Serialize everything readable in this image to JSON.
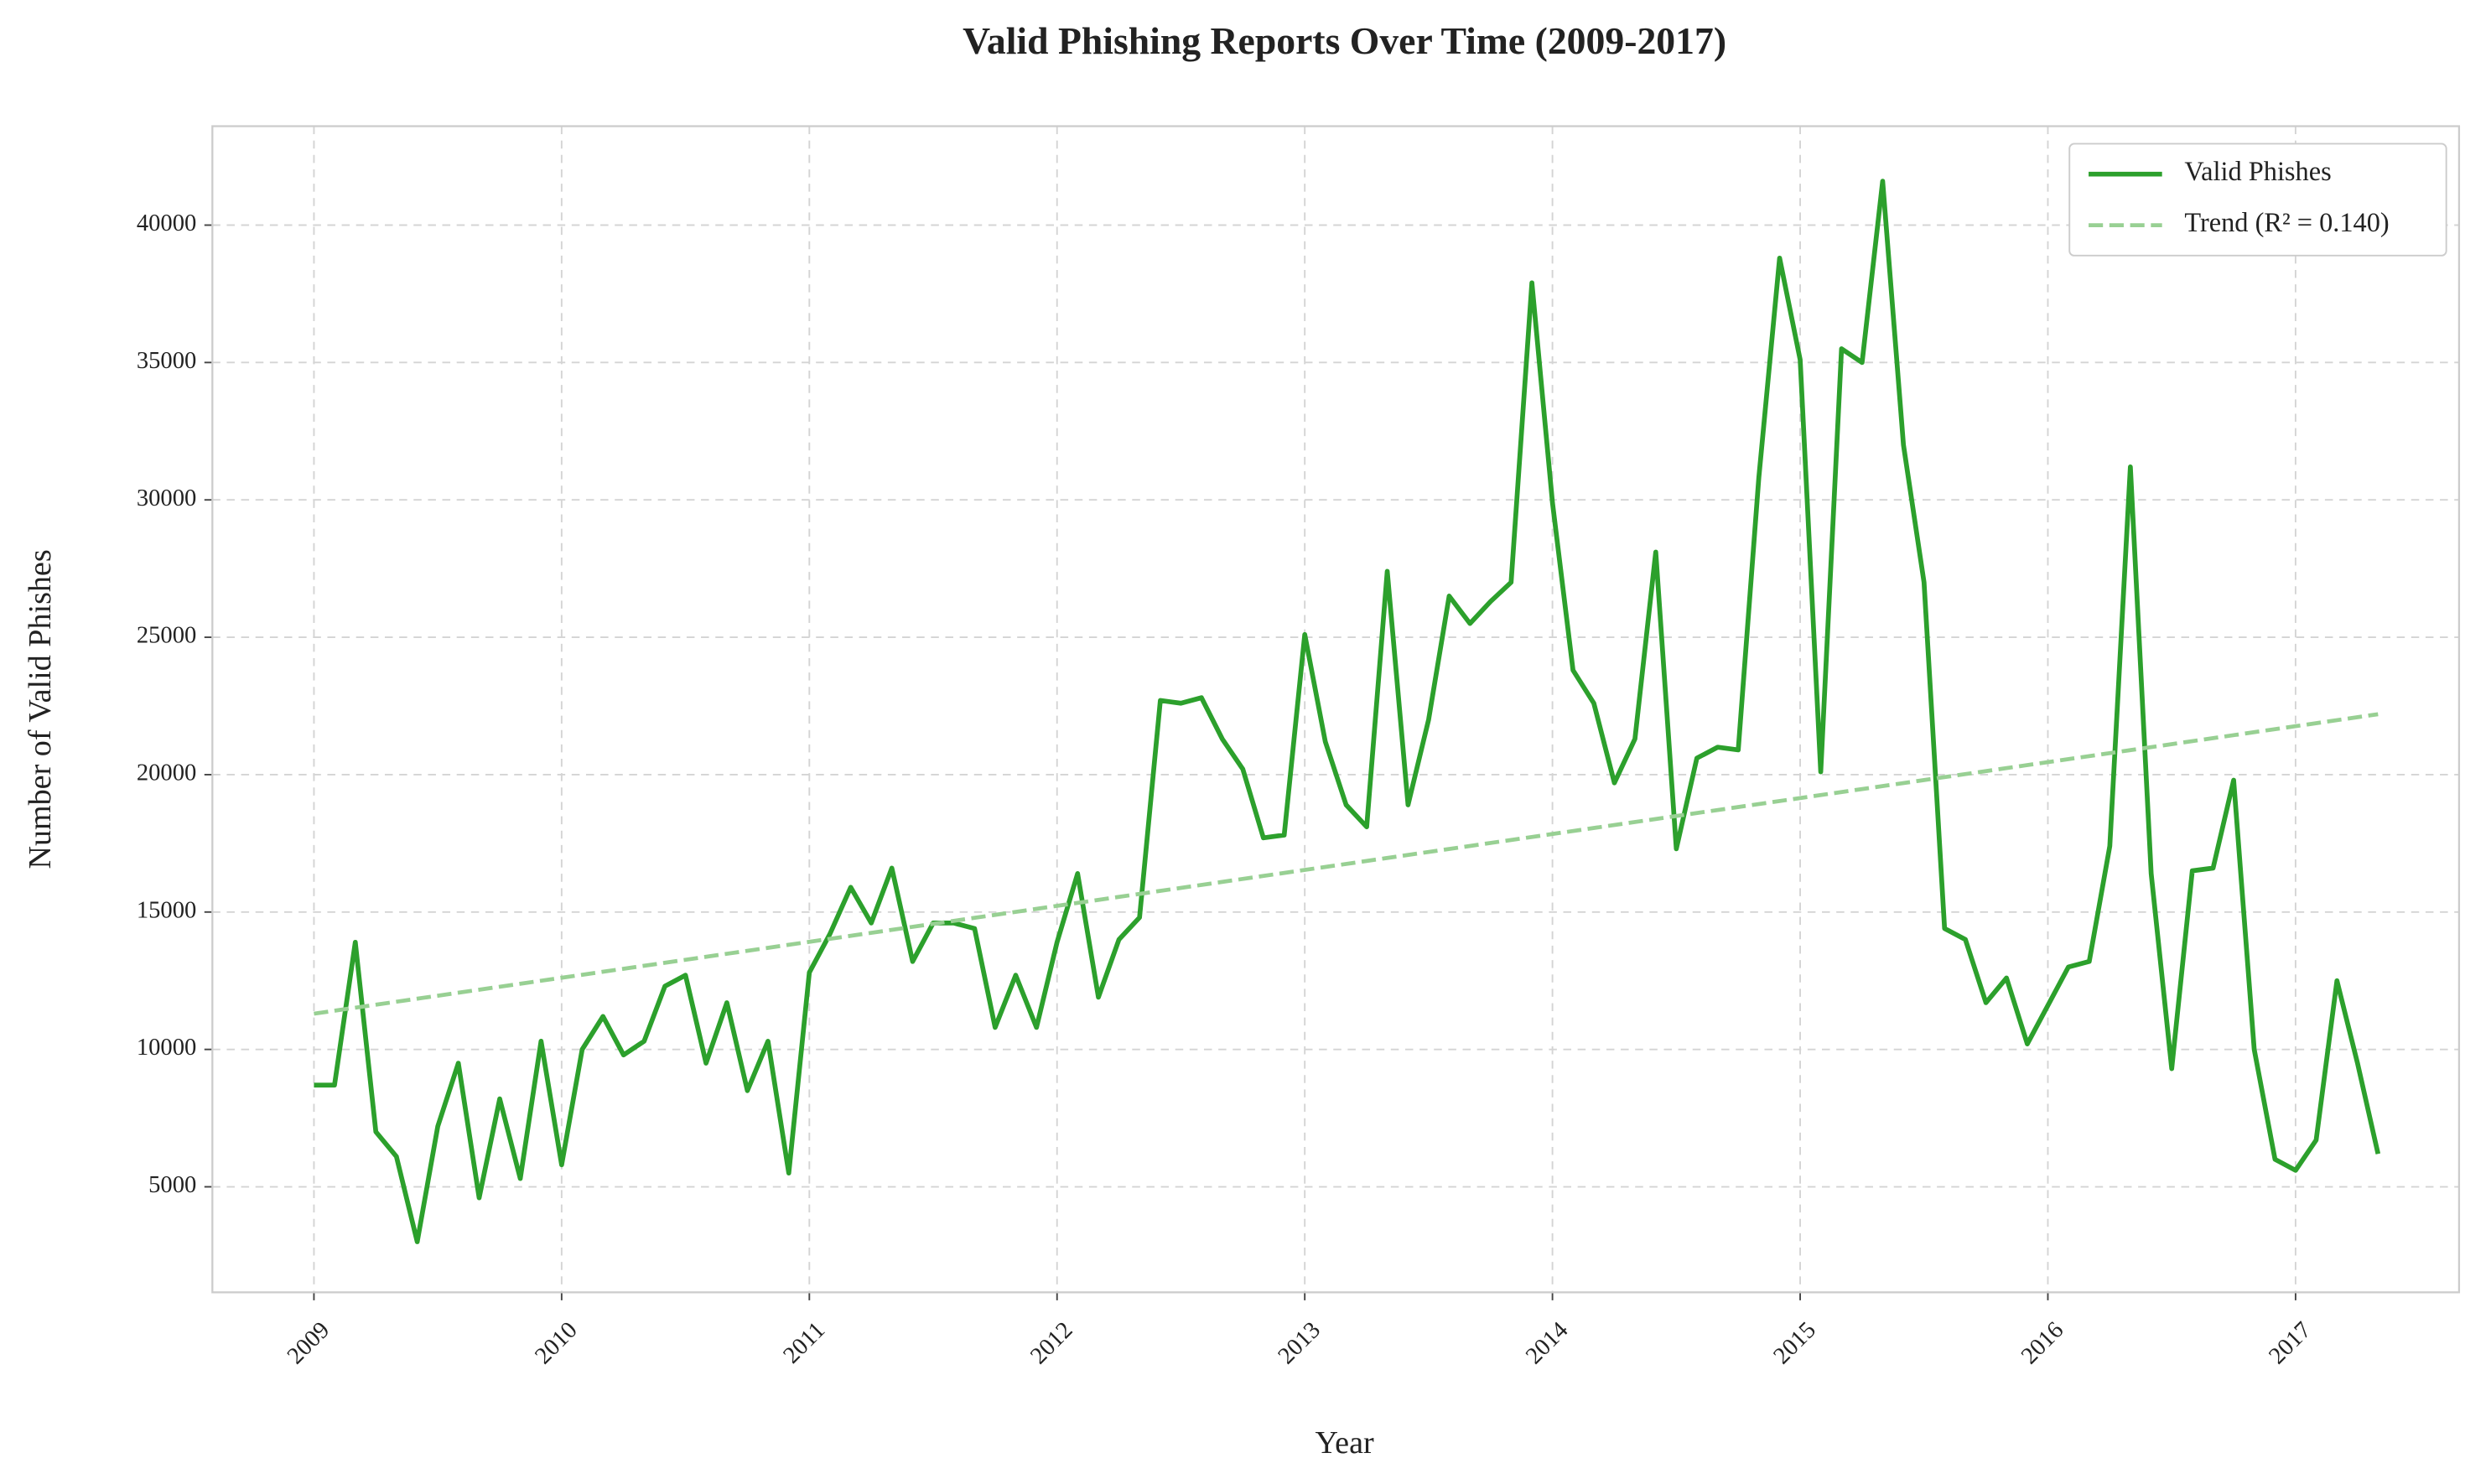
{
  "chart_data": {
    "type": "line",
    "title": "Valid Phishing Reports Over Time (2009-2017)",
    "x_label": "Year",
    "y_label": "Number of Valid Phishes",
    "x": [
      2009,
      2009.083,
      2009.167,
      2009.25,
      2009.333,
      2009.417,
      2009.5,
      2009.583,
      2009.667,
      2009.75,
      2009.833,
      2009.917,
      2010,
      2010.083,
      2010.167,
      2010.25,
      2010.333,
      2010.417,
      2010.5,
      2010.583,
      2010.667,
      2010.75,
      2010.833,
      2010.917,
      2011,
      2011.083,
      2011.167,
      2011.25,
      2011.333,
      2011.417,
      2011.5,
      2011.583,
      2011.667,
      2011.75,
      2011.833,
      2011.917,
      2012,
      2012.083,
      2012.167,
      2012.25,
      2012.333,
      2012.417,
      2012.5,
      2012.583,
      2012.667,
      2012.75,
      2012.833,
      2012.917,
      2013,
      2013.083,
      2013.167,
      2013.25,
      2013.333,
      2013.417,
      2013.5,
      2013.583,
      2013.667,
      2013.75,
      2013.833,
      2013.917,
      2014,
      2014.083,
      2014.167,
      2014.25,
      2014.333,
      2014.417,
      2014.5,
      2014.583,
      2014.667,
      2014.75,
      2014.833,
      2014.917,
      2015,
      2015.083,
      2015.167,
      2015.25,
      2015.333,
      2015.417,
      2015.5,
      2015.583,
      2015.667,
      2015.75,
      2015.833,
      2015.917,
      2016,
      2016.083,
      2016.167,
      2016.25,
      2016.333,
      2016.417,
      2016.5,
      2016.583,
      2016.667,
      2016.75,
      2016.833,
      2016.917,
      2017,
      2017.083,
      2017.167,
      2017.25,
      2017.333
    ],
    "series": [
      {
        "name": "Valid Phishes",
        "color": "#2ca02c",
        "style": "solid",
        "values": [
          8700,
          8700,
          13900,
          7000,
          6100,
          3000,
          7200,
          9500,
          4600,
          8200,
          5300,
          10300,
          5800,
          10000,
          11200,
          9800,
          10300,
          12300,
          12700,
          9500,
          11700,
          8500,
          10300,
          5500,
          12800,
          14200,
          15900,
          14600,
          16600,
          13200,
          14600,
          14600,
          14400,
          10800,
          12700,
          10800,
          13900,
          16400,
          11900,
          14000,
          14800,
          22700,
          22600,
          22800,
          21300,
          20200,
          17700,
          17800,
          25100,
          21200,
          18900,
          18100,
          27400,
          18900,
          22000,
          26500,
          25500,
          26300,
          27000,
          37900,
          29900,
          23800,
          22600,
          19700,
          21300,
          28100,
          17300,
          20600,
          21000,
          20900,
          30800,
          38800,
          35100,
          20100,
          35500,
          35000,
          41600,
          32000,
          27000,
          14400,
          14000,
          11700,
          12600,
          10200,
          11600,
          13000,
          13200,
          17400,
          31200,
          16400,
          9300,
          16500,
          16600,
          19800,
          10000,
          6000,
          5600,
          6700,
          12500,
          9500,
          6200
        ]
      },
      {
        "name": "Trend (R² = 0.140)",
        "color": "#98d093",
        "style": "dashed",
        "x": [
          2009,
          2017.333
        ],
        "values": [
          11300,
          22200
        ]
      }
    ],
    "xlim": [
      2008.59,
      2017.66
    ],
    "ylim": [
      1160,
      43600
    ],
    "xticks": [
      2009,
      2010,
      2011,
      2012,
      2013,
      2014,
      2015,
      2016,
      2017
    ],
    "yticks": [
      5000,
      10000,
      15000,
      20000,
      25000,
      30000,
      35000,
      40000
    ],
    "grid": true,
    "legend": "upper right"
  }
}
